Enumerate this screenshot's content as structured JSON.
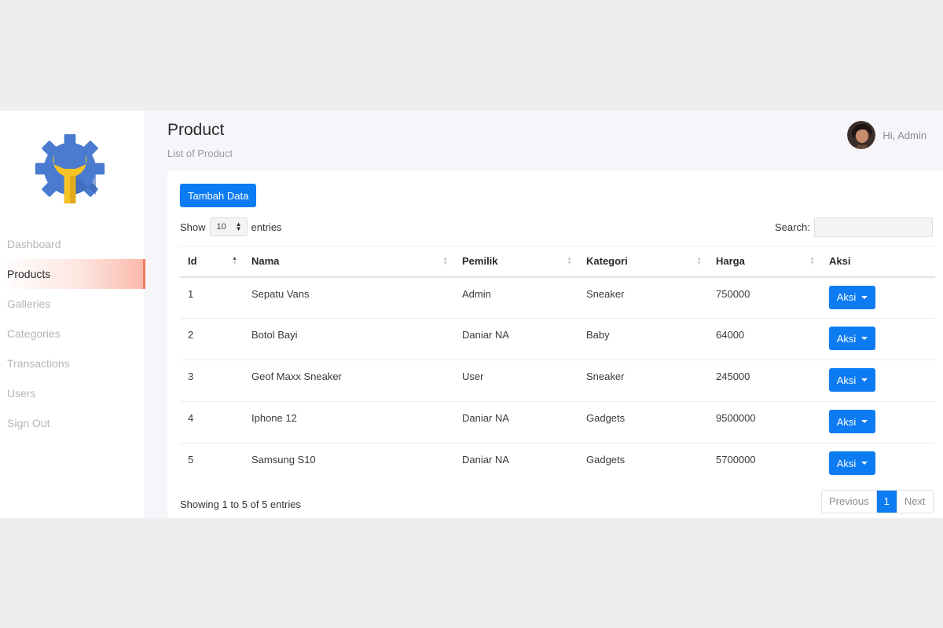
{
  "sidebar": {
    "logo_icon": "gear-wrench-logo-icon",
    "items": [
      {
        "label": "Dashboard",
        "active": false
      },
      {
        "label": "Products",
        "active": true
      },
      {
        "label": "Galleries",
        "active": false
      },
      {
        "label": "Categories",
        "active": false
      },
      {
        "label": "Transactions",
        "active": false
      },
      {
        "label": "Users",
        "active": false
      },
      {
        "label": "Sign Out",
        "active": false
      }
    ]
  },
  "header": {
    "title": "Product",
    "subtitle": "List of Product",
    "greeting": "Hi, Admin"
  },
  "toolbar": {
    "add_label": "Tambah Data",
    "show_label": "Show",
    "entries_value": "10",
    "entries_label": "entries",
    "search_label": "Search:",
    "search_value": ""
  },
  "table": {
    "columns": [
      "Id",
      "Nama",
      "Pemilik",
      "Kategori",
      "Harga",
      "Aksi"
    ],
    "rows": [
      {
        "id": "1",
        "nama": "Sepatu Vans",
        "pemilik": "Admin",
        "kategori": "Sneaker",
        "harga": "750000",
        "aksi": "Aksi"
      },
      {
        "id": "2",
        "nama": "Botol Bayi",
        "pemilik": "Daniar NA",
        "kategori": "Baby",
        "harga": "64000",
        "aksi": "Aksi"
      },
      {
        "id": "3",
        "nama": "Geof Maxx Sneaker",
        "pemilik": "User",
        "kategori": "Sneaker",
        "harga": "245000",
        "aksi": "Aksi"
      },
      {
        "id": "4",
        "nama": "Iphone 12",
        "pemilik": "Daniar NA",
        "kategori": "Gadgets",
        "harga": "9500000",
        "aksi": "Aksi"
      },
      {
        "id": "5",
        "nama": "Samsung S10",
        "pemilik": "Daniar NA",
        "kategori": "Gadgets",
        "harga": "5700000",
        "aksi": "Aksi"
      }
    ]
  },
  "footer": {
    "info": "Showing 1 to 5 of 5 entries",
    "previous": "Previous",
    "current_page": "1",
    "next": "Next"
  },
  "colors": {
    "primary": "#0d7bf2",
    "active_accent": "#f2785e",
    "logo_blue": "#4a7bd0",
    "logo_yellow": "#f7c325"
  }
}
